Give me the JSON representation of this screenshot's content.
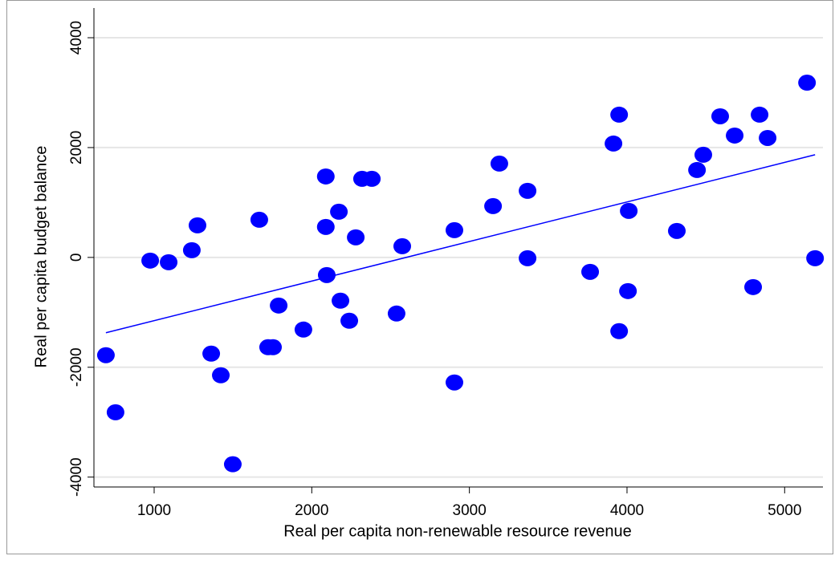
{
  "chart_data": {
    "type": "scatter",
    "x_label": "Real per capita non-renewable resource revenue",
    "y_label": "Real per capita budget balance",
    "xlim": [
      618,
      5243
    ],
    "ylim": [
      -4180,
      4570
    ],
    "xticks": [
      1000,
      2000,
      3000,
      4000,
      5000
    ],
    "yticks": [
      -4000,
      -2000,
      0,
      2000,
      4000
    ],
    "grid": true,
    "series": [
      {
        "color": "#0000ff",
        "x": [
          694,
          755,
          975,
          1092,
          1239,
          1275,
          1362,
          1423,
          1499,
          1667,
          1723,
          1754,
          1790,
          1947,
          2089,
          2089,
          2095,
          2172,
          2182,
          2238,
          2279,
          2319,
          2381,
          2538,
          2574,
          2905,
          2905,
          3150,
          3190,
          3369,
          3369,
          3766,
          3914,
          3950,
          3950,
          4006,
          4011,
          4316,
          4444,
          4484,
          4591,
          4683,
          4800,
          4841,
          4892,
          5142,
          5193
        ],
        "values": [
          -1780,
          -2820,
          -58,
          -88,
          131,
          584,
          -1752,
          -2146,
          -3766,
          686,
          -1635,
          -1635,
          -876,
          -1314,
          1474,
          555,
          -321,
          832,
          -788,
          -1153,
          365,
          1431,
          1431,
          -1022,
          204,
          496,
          -2277,
          934,
          1708,
          1212,
          -15,
          -263,
          2073,
          2599,
          -1343,
          -613,
          847,
          482,
          1591,
          1869,
          2569,
          2219,
          -540,
          2599,
          2175,
          3182,
          -15
        ]
      },
      {
        "type": "line",
        "color": "#0000ff",
        "x": [
          694,
          5193
        ],
        "values": [
          -1372,
          1869
        ]
      }
    ]
  }
}
